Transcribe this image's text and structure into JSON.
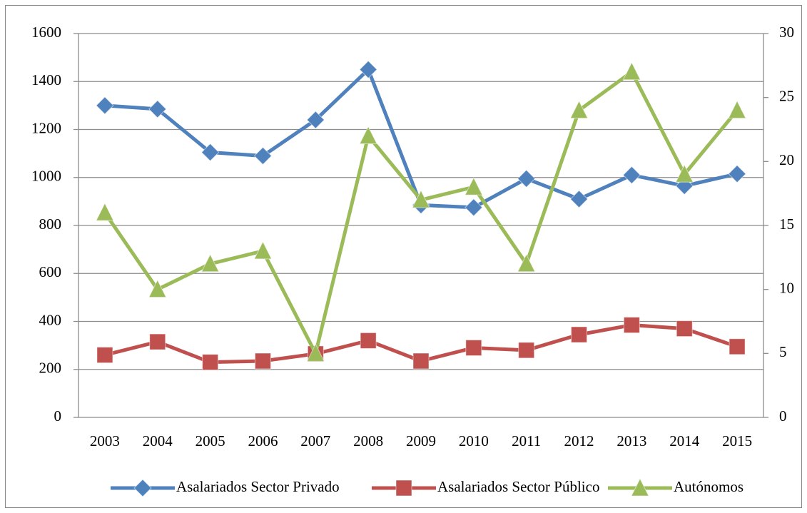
{
  "chart_data": {
    "type": "line",
    "categories": [
      "2003",
      "2004",
      "2005",
      "2006",
      "2007",
      "2008",
      "2009",
      "2010",
      "2011",
      "2012",
      "2013",
      "2014",
      "2015"
    ],
    "series": [
      {
        "name": "Asalariados Sector Privado",
        "color": "#4f81bd",
        "marker": "diamond",
        "values": [
          1300,
          1285,
          1105,
          1090,
          1240,
          1450,
          885,
          875,
          995,
          910,
          1010,
          965,
          1015
        ]
      },
      {
        "name": "Asalariados Sector Público",
        "color": "#c0504d",
        "marker": "square",
        "values": [
          260,
          315,
          230,
          235,
          265,
          320,
          235,
          290,
          280,
          345,
          385,
          370,
          295
        ]
      },
      {
        "name": "Autónomos",
        "color": "#9bbb59",
        "marker": "triangle",
        "axis": "y2",
        "values": [
          16,
          10,
          12,
          13,
          5,
          22,
          17,
          18,
          12,
          24,
          27,
          19,
          24
        ]
      }
    ],
    "ylim": [
      0,
      1600
    ],
    "yticks": [
      0,
      200,
      400,
      600,
      800,
      1000,
      1200,
      1400,
      1600
    ],
    "y2lim": [
      0,
      30
    ],
    "y2ticks": [
      0,
      5,
      10,
      15,
      20,
      25,
      30
    ],
    "grid": true,
    "legend": "bottom"
  }
}
